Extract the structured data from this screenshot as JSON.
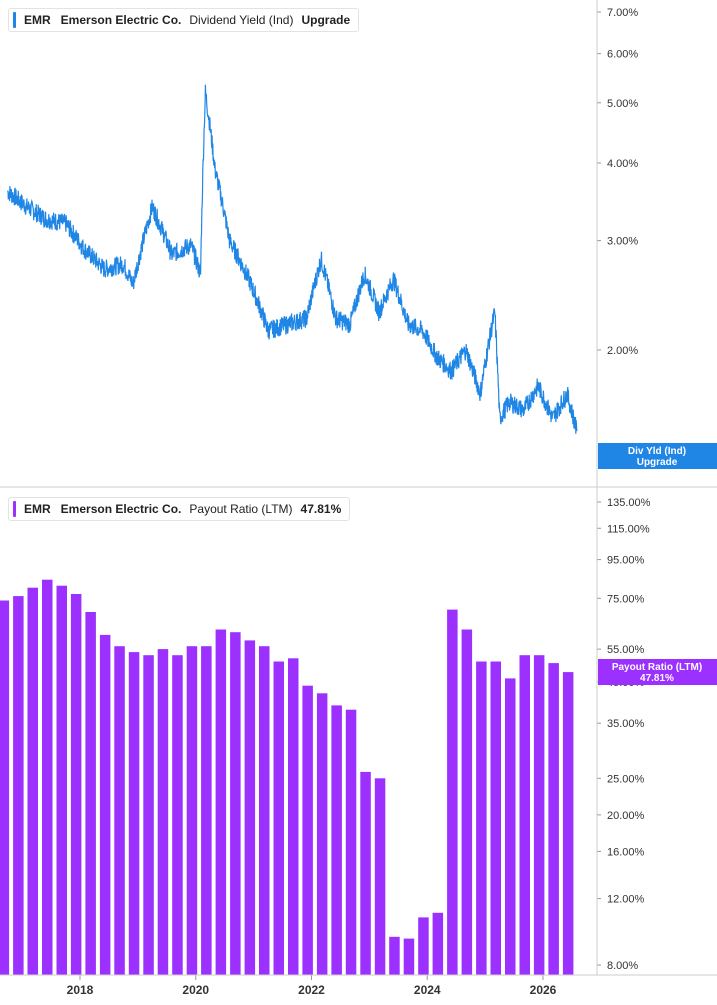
{
  "colors": {
    "yield_line": "#1f86e6",
    "payout_bar": "#9b30ff",
    "axis": "#cccccc"
  },
  "panels": {
    "top": {
      "symbol": "EMR",
      "company": "Emerson Electric Co.",
      "metric": "Dividend Yield (Ind)",
      "value_text": "Upgrade"
    },
    "bottom": {
      "symbol": "EMR",
      "company": "Emerson Electric Co.",
      "metric": "Payout Ratio (LTM)",
      "value_text": "47.81%"
    }
  },
  "badges": {
    "top": {
      "line1": "Div Yld (Ind)",
      "line2": "Upgrade"
    },
    "bottom": {
      "line1": "Payout Ratio (LTM)",
      "line2": "47.81%"
    }
  },
  "chart_data": [
    {
      "type": "line",
      "title": "Dividend Yield (Ind)",
      "scale": "log",
      "y_ticks": [
        {
          "value": 7,
          "label": "7.00%"
        },
        {
          "value": 6,
          "label": "6.00%"
        },
        {
          "value": 5,
          "label": "5.00%"
        },
        {
          "value": 4,
          "label": "4.00%"
        },
        {
          "value": 3,
          "label": "3.00%"
        },
        {
          "value": 2,
          "label": "2.00%"
        }
      ],
      "ylim": [
        1.45,
        7.2
      ],
      "x": [
        "2016-10",
        "2017-02",
        "2017-06",
        "2017-10",
        "2018-02",
        "2018-06",
        "2018-10",
        "2018-12",
        "2019-04",
        "2019-08",
        "2019-12",
        "2020-02",
        "2020-03",
        "2020-05",
        "2020-08",
        "2020-12",
        "2021-04",
        "2021-08",
        "2021-12",
        "2022-03",
        "2022-06",
        "2022-09",
        "2022-12",
        "2023-03",
        "2023-06",
        "2023-09",
        "2023-12",
        "2024-03",
        "2024-06",
        "2024-09",
        "2024-12",
        "2025-03",
        "2025-04",
        "2025-06",
        "2025-09",
        "2025-12",
        "2026-03",
        "2026-06",
        "2026-08"
      ],
      "values": [
        3.6,
        3.4,
        3.25,
        3.2,
        2.9,
        2.7,
        2.75,
        2.55,
        3.4,
        2.85,
        2.95,
        2.65,
        5.2,
        3.9,
        3.0,
        2.6,
        2.15,
        2.2,
        2.25,
        2.8,
        2.25,
        2.2,
        2.65,
        2.3,
        2.6,
        2.2,
        2.15,
        1.95,
        1.85,
        2.0,
        1.7,
        2.3,
        1.55,
        1.65,
        1.6,
        1.75,
        1.55,
        1.7,
        1.48
      ]
    },
    {
      "type": "bar",
      "title": "Payout Ratio (LTM)",
      "scale": "log",
      "y_ticks": [
        {
          "value": 135,
          "label": "135.00%"
        },
        {
          "value": 115,
          "label": "115.00%"
        },
        {
          "value": 95,
          "label": "95.00%"
        },
        {
          "value": 75,
          "label": "75.00%"
        },
        {
          "value": 55,
          "label": "55.00%"
        },
        {
          "value": 45,
          "label": "45.00%"
        },
        {
          "value": 35,
          "label": "35.00%"
        },
        {
          "value": 25,
          "label": "25.00%"
        },
        {
          "value": 20,
          "label": "20.00%"
        },
        {
          "value": 16,
          "label": "16.00%"
        },
        {
          "value": 12,
          "label": "12.00%"
        },
        {
          "value": 8,
          "label": "8.00%"
        }
      ],
      "ylim": [
        7.5,
        145
      ],
      "x": [
        "2016-09",
        "2016-12",
        "2017-03",
        "2017-06",
        "2017-09",
        "2017-12",
        "2018-03",
        "2018-06",
        "2018-09",
        "2018-12",
        "2019-03",
        "2019-06",
        "2019-09",
        "2019-12",
        "2020-03",
        "2020-06",
        "2020-09",
        "2020-12",
        "2021-03",
        "2021-06",
        "2021-09",
        "2021-12",
        "2022-03",
        "2022-06",
        "2022-09",
        "2022-12",
        "2023-03",
        "2023-06",
        "2023-09",
        "2023-12",
        "2024-03",
        "2024-06",
        "2024-09",
        "2024-12",
        "2025-03",
        "2025-06",
        "2025-09",
        "2025-12",
        "2026-03",
        "2026-06"
      ],
      "values": [
        74,
        76,
        80,
        84,
        81,
        77,
        69,
        60,
        56,
        54,
        53,
        55,
        53,
        56,
        56,
        62,
        61,
        58,
        56,
        51,
        52,
        44,
        42,
        39,
        38,
        26,
        25,
        9.5,
        9.4,
        10.7,
        11.0,
        70,
        62,
        51,
        51,
        46,
        53,
        53,
        50.5,
        47.81
      ]
    }
  ],
  "x_axis": {
    "ticks": [
      "2018",
      "2020",
      "2022",
      "2024",
      "2026"
    ],
    "tick_dates": [
      "2018-01",
      "2020-01",
      "2022-01",
      "2024-01",
      "2026-01"
    ]
  }
}
